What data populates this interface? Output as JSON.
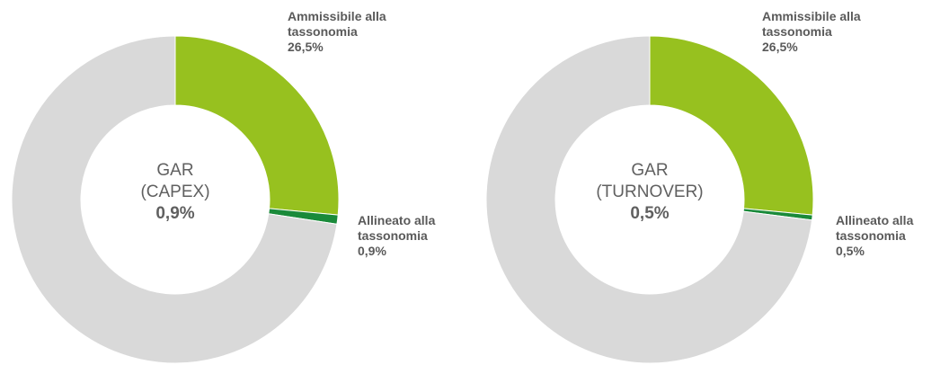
{
  "chart_data": [
    {
      "type": "donut",
      "title": "GAR (CAPEX)",
      "categories": [
        "Ammissibile alla tassonomia",
        "Allineato alla tassonomia",
        null
      ],
      "values": [
        26.5,
        0.9,
        72.6
      ],
      "value_labels": [
        "26,5%",
        "0,9%",
        null
      ],
      "colors": [
        "#97c11f",
        "#1a8a3a",
        "#d9d9d9"
      ]
    },
    {
      "type": "donut",
      "title": "GAR (TURNOVER)",
      "categories": [
        "Ammissibile alla tassonomia",
        "Allineato alla tassonomia",
        null
      ],
      "values": [
        26.5,
        0.5,
        73.0
      ],
      "value_labels": [
        "26,5%",
        "0,5%",
        null
      ],
      "colors": [
        "#97c11f",
        "#1a8a3a",
        "#d9d9d9"
      ]
    }
  ]
}
